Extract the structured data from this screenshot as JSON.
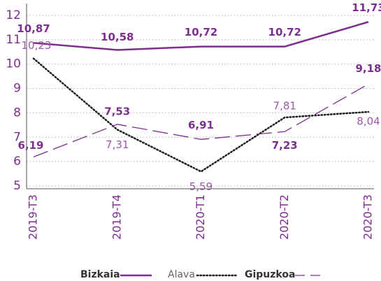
{
  "chart_data": {
    "type": "line",
    "categories": [
      "2019-T3",
      "2019-T4",
      "2020-T1",
      "2020-T2",
      "2020-T3"
    ],
    "series": [
      {
        "name": "Bizkaia",
        "color": "#7d2f8f",
        "line_style": "solid",
        "values": [
          10.87,
          10.58,
          10.72,
          10.72,
          11.73
        ],
        "value_labels": [
          "10,87",
          "10,58",
          "10,72",
          "10,72",
          "11,73"
        ]
      },
      {
        "name": "Alava",
        "color": "#1a1a1a",
        "line_style": "dotted",
        "values": [
          10.23,
          7.31,
          5.59,
          7.81,
          8.04
        ],
        "value_labels": [
          "10,23",
          "7,31",
          "5,59",
          "7,81",
          "8,04"
        ]
      },
      {
        "name": "Gipuzkoa",
        "color": "#7d2f8f",
        "line_style": "dashed",
        "values": [
          6.19,
          7.53,
          6.91,
          7.23,
          9.18
        ],
        "value_labels": [
          "6,19",
          "7,53",
          "6,91",
          "7,23",
          "9,18"
        ]
      }
    ],
    "ylim": [
      5,
      12.2
    ],
    "yticks": [
      5,
      6,
      7,
      8,
      9,
      10,
      11,
      12
    ],
    "grid": true,
    "legend": "bottom"
  }
}
